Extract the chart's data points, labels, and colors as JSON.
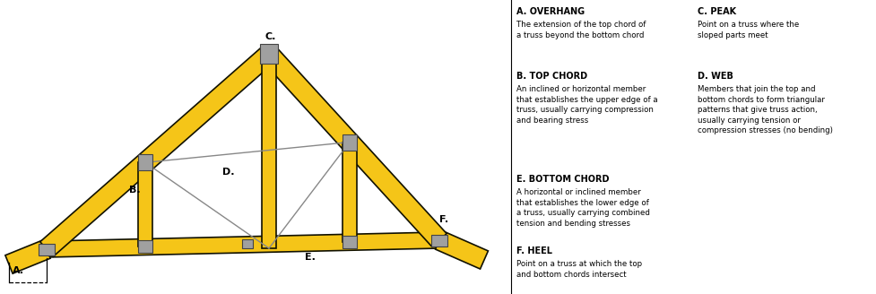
{
  "bg_color": "#ffffff",
  "truss_fill": "#F5C518",
  "truss_edge": "#111100",
  "connector_fill": "#a0a0a0",
  "connector_edge": "#444444",
  "web_line_color": "#888888",
  "annotations_left": [
    {
      "title": "A. OVERHANG",
      "body": "The extension of the top chord of\na truss beyond the bottom chord"
    },
    {
      "title": "B. TOP CHORD",
      "body": "An inclined or horizontal member\nthat establishes the upper edge of a\ntruss, usually carrying compression\nand bearing stress"
    },
    {
      "title": "E. BOTTOM CHORD",
      "body": "A horizontal or inclined member\nthat establishes the lower edge of\na truss, usually carrying combined\ntension and bending stresses"
    },
    {
      "title": "F. HEEL",
      "body": "Point on a truss at which the top\nand bottom chords intersect"
    }
  ],
  "annotations_right": [
    {
      "title": "C. PEAK",
      "body": "Point on a truss where the\nsloped parts meet"
    },
    {
      "title": "D. WEB",
      "body": "Members that join the top and\nbottom chords to form triangular\npatterns that give truss action,\nusually carrying tension or\ncompression stresses (no bending)"
    }
  ]
}
